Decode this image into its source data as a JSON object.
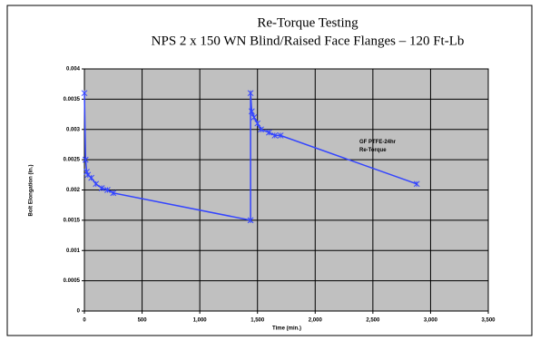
{
  "chart_data": {
    "type": "line",
    "title": "Re-Torque Testing",
    "subtitle": "NPS 2 x 150 WN Blind/Raised Face Flanges – 120 Ft-Lb",
    "x_label": "Time (min.)",
    "y_label": "Bolt Elongation (in.)",
    "annotation": "GF PTFE-24hr Re-Torque",
    "xlim": [
      0,
      3500
    ],
    "ylim": [
      0,
      0.004
    ],
    "xticks": [
      0,
      500,
      {
        "value": 1000,
        "label": "1,000"
      },
      {
        "value": 1500,
        "label": "1,500"
      },
      {
        "value": 2000,
        "label": "2,000"
      },
      {
        "value": 2500,
        "label": "2,500"
      },
      {
        "value": 3000,
        "label": "3,000"
      },
      {
        "value": 3500,
        "label": "3,500"
      }
    ],
    "yticks": [
      0,
      0.0005,
      0.001,
      0.0015,
      0.002,
      0.0025,
      0.003,
      0.0035,
      0.004
    ],
    "grid": true,
    "series": [
      {
        "color": "#3344ff",
        "x": [
          0,
          10,
          20,
          30,
          60,
          100,
          150,
          200,
          250,
          1440,
          1440,
          1450,
          1470,
          1500,
          1530,
          1600,
          1650,
          1700,
          2880
        ],
        "values": [
          0.0036,
          0.0025,
          0.0023,
          0.00225,
          0.0022,
          0.0021,
          0.00203,
          0.002,
          0.00195,
          0.0015,
          0.0036,
          0.0033,
          0.0032,
          0.0031,
          0.003,
          0.00295,
          0.0029,
          0.0029,
          0.0021
        ]
      }
    ]
  }
}
